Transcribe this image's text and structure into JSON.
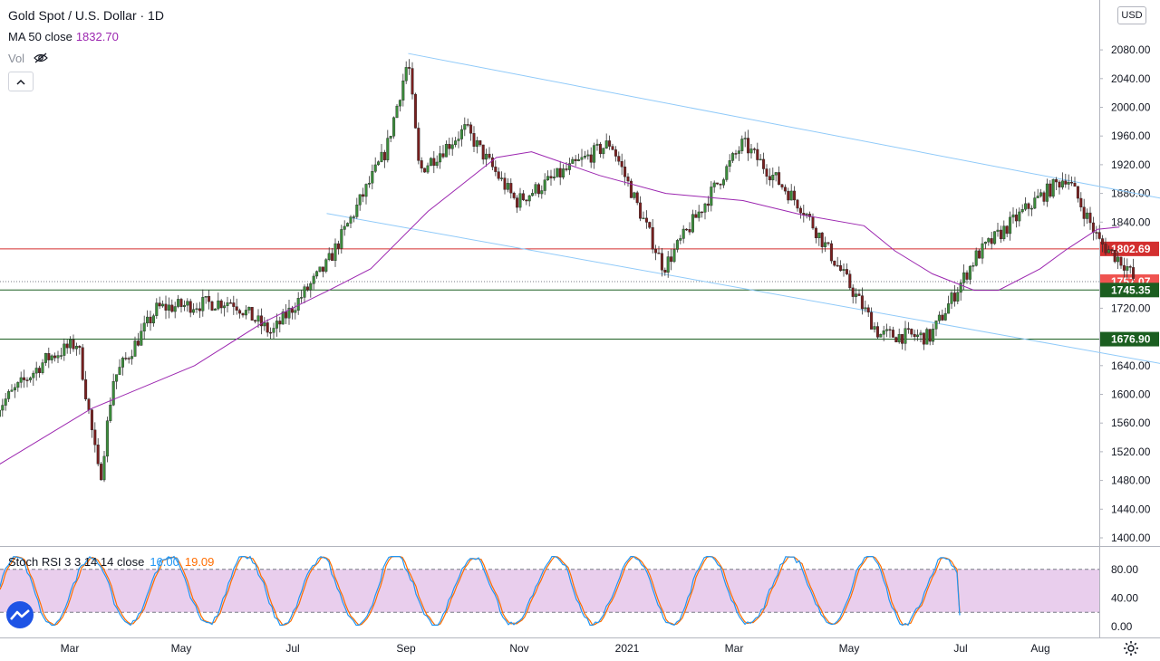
{
  "header": {
    "title": "Gold Spot / U.S. Dollar · 1D",
    "ma_label": "MA 50 close",
    "ma_value": "1832.70",
    "vol_label": "Vol",
    "currency": "USD"
  },
  "stoch": {
    "label": "Stoch RSI 3 3 14 14 close",
    "k_value": "16.00",
    "d_value": "19.09",
    "upper_band": 80,
    "lower_band": 20
  },
  "colors": {
    "up": "#26a69a",
    "down": "#ef5350",
    "ma": "#9c27b0",
    "channel": "#90caf9",
    "red_level": "#d32f2f",
    "green_level": "#1b5e20",
    "stoch_k": "#2196f3",
    "stoch_d": "#ff6d00",
    "stoch_band": "#e1bee7"
  },
  "chart_data": {
    "type": "candlestick",
    "title": "Gold Spot / U.S. Dollar · 1D",
    "price_axis": {
      "range": [
        1400,
        2120
      ],
      "ticks": [
        "1400.00",
        "1440.00",
        "1480.00",
        "1520.00",
        "1560.00",
        "1600.00",
        "1640.00",
        "1680.00",
        "1720.00",
        "1760.00",
        "1800.00",
        "1840.00",
        "1880.00",
        "1920.00",
        "1960.00",
        "2000.00",
        "2040.00",
        "2080.00"
      ]
    },
    "time_axis": {
      "labels": [
        "Mar",
        "May",
        "Jul",
        "Sep",
        "Nov",
        "2021",
        "Mar",
        "May",
        "Jul",
        "Aug"
      ]
    },
    "price_series": [
      {
        "date": "2020-02-01",
        "close": 1580
      },
      {
        "date": "2020-02-24",
        "close": 1650
      },
      {
        "date": "2020-03-09",
        "close": 1672
      },
      {
        "date": "2020-03-19",
        "close": 1478
      },
      {
        "date": "2020-03-25",
        "close": 1620
      },
      {
        "date": "2020-04-14",
        "close": 1720
      },
      {
        "date": "2020-05-18",
        "close": 1730
      },
      {
        "date": "2020-06-05",
        "close": 1685
      },
      {
        "date": "2020-06-30",
        "close": 1780
      },
      {
        "date": "2020-07-27",
        "close": 1940
      },
      {
        "date": "2020-08-06",
        "close": 2067
      },
      {
        "date": "2020-08-11",
        "close": 1911
      },
      {
        "date": "2020-09-01",
        "close": 1970
      },
      {
        "date": "2020-09-24",
        "close": 1868
      },
      {
        "date": "2020-11-06",
        "close": 1951
      },
      {
        "date": "2020-11-30",
        "close": 1776
      },
      {
        "date": "2021-01-05",
        "close": 1950
      },
      {
        "date": "2021-02-01",
        "close": 1860
      },
      {
        "date": "2021-03-08",
        "close": 1683
      },
      {
        "date": "2021-03-31",
        "close": 1680
      },
      {
        "date": "2021-04-21",
        "close": 1793
      },
      {
        "date": "2021-05-17",
        "close": 1868
      },
      {
        "date": "2021-06-01",
        "close": 1904
      },
      {
        "date": "2021-06-16",
        "close": 1812
      },
      {
        "date": "2021-06-28",
        "close": 1780
      },
      {
        "date": "2021-07-02",
        "close": 1757
      }
    ],
    "ma50_series": [
      {
        "date": "2020-02-01",
        "value": 1500
      },
      {
        "date": "2020-03-15",
        "value": 1580
      },
      {
        "date": "2020-05-01",
        "value": 1640
      },
      {
        "date": "2020-06-01",
        "value": 1700
      },
      {
        "date": "2020-07-01",
        "value": 1745
      },
      {
        "date": "2020-07-20",
        "value": 1775
      },
      {
        "date": "2020-08-15",
        "value": 1855
      },
      {
        "date": "2020-09-15",
        "value": 1930
      },
      {
        "date": "2020-10-01",
        "value": 1938
      },
      {
        "date": "2020-11-01",
        "value": 1905
      },
      {
        "date": "2020-12-01",
        "value": 1880
      },
      {
        "date": "2021-01-05",
        "value": 1870
      },
      {
        "date": "2021-02-01",
        "value": 1850
      },
      {
        "date": "2021-03-01",
        "value": 1835
      },
      {
        "date": "2021-03-15",
        "value": 1800
      },
      {
        "date": "2021-04-01",
        "value": 1768
      },
      {
        "date": "2021-04-20",
        "value": 1745
      },
      {
        "date": "2021-05-01",
        "value": 1745
      },
      {
        "date": "2021-05-20",
        "value": 1775
      },
      {
        "date": "2021-06-01",
        "value": 1802
      },
      {
        "date": "2021-06-15",
        "value": 1830
      },
      {
        "date": "2021-06-25",
        "value": 1833
      }
    ],
    "channel_lines": [
      {
        "name": "upper",
        "from": {
          "date": "2020-08-06",
          "price": 2075
        },
        "to": {
          "date": "2021-07-26",
          "price": 1866
        }
      },
      {
        "name": "lower",
        "from": {
          "date": "2020-06-30",
          "price": 1852
        },
        "to": {
          "date": "2021-07-19",
          "price": 1640
        }
      }
    ],
    "levels": [
      {
        "label": "1802.69",
        "value": 1802.69,
        "kind": "red"
      },
      {
        "label": "1757.07",
        "value": 1757.07,
        "kind": "last"
      },
      {
        "label": "1745.35",
        "value": 1745.35,
        "kind": "green"
      },
      {
        "label": "1676.90",
        "value": 1676.9,
        "kind": "green"
      }
    ],
    "stoch_rsi": {
      "type": "line",
      "range": [
        0,
        100
      ],
      "ticks": [
        "0.00",
        "40.00",
        "80.00"
      ],
      "band": [
        20,
        80
      ],
      "k_last": 16.0,
      "d_last": 19.09
    }
  }
}
